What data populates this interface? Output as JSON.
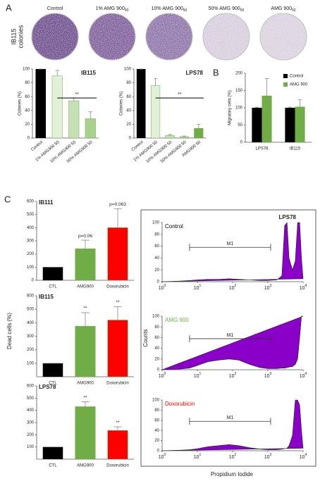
{
  "panels": {
    "a": "A",
    "b": "B",
    "c": "C"
  },
  "colonies_label": [
    "IB115",
    "colonies"
  ],
  "dishes": [
    {
      "label": "Control",
      "color": "#6a4a8a"
    },
    {
      "label": "1% AMG 900",
      "sub": "50",
      "color": "#7a5a98"
    },
    {
      "label": "10% AMG 900",
      "sub": "50",
      "color": "#8a6fa6"
    },
    {
      "label": "50% AMG 900",
      "sub": "50",
      "color": "#d6ccdc"
    },
    {
      "label": "AMG 900",
      "sub": "50",
      "color": "#d9d0de"
    }
  ],
  "dead_ylabel": "Dead cells (%)",
  "flow": {
    "title": "LPS78",
    "xlabel": "Propidium Iodide",
    "ylabel": "Counts"
  },
  "chart_data": [
    {
      "type": "bar",
      "title": "IB115",
      "ylabel": "Colonies (%)",
      "categories": [
        "Control",
        "1% AMG900 50",
        "10% AMG900 50",
        "50% AMG900 50"
      ],
      "values": [
        100,
        90,
        54,
        28
      ],
      "errors": [
        0,
        8,
        4,
        10
      ],
      "colors": [
        "#000000",
        "#e2efd9",
        "#c5e0b4",
        "#a9d18e"
      ],
      "ylim": [
        0,
        100
      ],
      "yticks": [
        0,
        20,
        40,
        60,
        80,
        100
      ],
      "annotation": "**"
    },
    {
      "type": "bar",
      "title": "LPS78",
      "ylabel": "Colonies (%)",
      "categories": [
        "Control",
        "1% AMG900 50",
        "10% AMG900 50",
        "50% AMG900 50",
        "AMG900 50"
      ],
      "values": [
        100,
        76,
        4,
        2,
        14
      ],
      "errors": [
        0,
        10,
        1,
        1,
        6
      ],
      "colors": [
        "#000000",
        "#e2efd9",
        "#c5e0b4",
        "#a9d18e",
        "#70ad47"
      ],
      "ylim": [
        0,
        100
      ],
      "yticks": [
        0,
        20,
        40,
        60,
        80,
        100
      ],
      "annotation": "**"
    },
    {
      "type": "grouped-bar",
      "ylabel": "Migratory cells (%)",
      "categories": [
        "LPS78",
        "IB115"
      ],
      "series": [
        {
          "name": "Control",
          "color": "#000000",
          "values": [
            100,
            100
          ],
          "errors": [
            2,
            2
          ]
        },
        {
          "name": "AMG 900",
          "color": "#70ad47",
          "values": [
            135,
            103
          ],
          "errors": [
            50,
            20
          ]
        }
      ],
      "ylim": [
        0,
        200
      ],
      "yticks": [
        0,
        50,
        100,
        150,
        200
      ],
      "legend": "upper right"
    },
    {
      "type": "bar",
      "title": "IB111",
      "categories": [
        "CTL",
        "AMG900",
        "Doxorubicin"
      ],
      "values": [
        100,
        240,
        400
      ],
      "errors": [
        0,
        65,
        145
      ],
      "annotations": [
        null,
        "p=0.06",
        "p=0.063"
      ],
      "colors": [
        "#000000",
        "#70ad47",
        "#ff0000"
      ],
      "ylim": [
        0,
        600
      ],
      "yticks": [
        0,
        100,
        200,
        300,
        400,
        500,
        600
      ]
    },
    {
      "type": "bar",
      "title": "IB115",
      "categories": [
        "CTL",
        "AMG900",
        "Doxorubicin"
      ],
      "values": [
        100,
        375,
        420
      ],
      "errors": [
        0,
        100,
        100
      ],
      "annotations": [
        null,
        "**",
        "**"
      ],
      "colors": [
        "#000000",
        "#70ad47",
        "#ff0000"
      ],
      "ylim": [
        0,
        600
      ],
      "yticks": [
        100,
        200,
        300,
        400,
        500,
        600
      ]
    },
    {
      "type": "bar",
      "title": "LPS78",
      "categories": [
        "CTL",
        "AMG900",
        "Doxorubicin"
      ],
      "values": [
        100,
        430,
        235
      ],
      "errors": [
        0,
        40,
        30
      ],
      "annotations": [
        null,
        "**",
        "**"
      ],
      "colors": [
        "#000000",
        "#70ad47",
        "#ff0000"
      ],
      "ylim": [
        0,
        600
      ],
      "yticks": [
        100,
        200,
        300,
        400,
        500,
        600
      ]
    },
    {
      "type": "area",
      "label": "Control",
      "label_color": "#000000",
      "color": "#8a00c8",
      "xscale": "log",
      "x": [
        1,
        3,
        6,
        10,
        20,
        40,
        80,
        150,
        300,
        600,
        1000,
        1800,
        2500,
        3000,
        3500,
        4000,
        5000,
        6000,
        7000,
        8000,
        9000,
        10000
      ],
      "values": [
        0,
        1,
        2,
        3,
        4,
        4,
        5,
        4,
        3,
        2,
        2,
        3,
        10,
        95,
        100,
        40,
        20,
        35,
        100,
        100,
        40,
        5
      ],
      "xlim": [
        1,
        10000
      ],
      "xticks": [
        {
          "value": 1,
          "label": "10",
          "sup": "0"
        },
        {
          "value": 10,
          "label": "10",
          "sup": "1"
        },
        {
          "value": 100,
          "label": "10",
          "sup": "2"
        },
        {
          "value": 1000,
          "label": "10",
          "sup": "3"
        },
        {
          "value": 10000,
          "label": "10",
          "sup": "4"
        }
      ],
      "ylim": [
        0,
        100
      ],
      "yticks": [
        0,
        20,
        40,
        60,
        80,
        100
      ],
      "marker": {
        "label": "M1",
        "range": [
          6,
          1200
        ]
      }
    },
    {
      "type": "area",
      "label": "AMG 900",
      "label_color": "#70ad47",
      "color": "#8a00c8",
      "xscale": "log",
      "x": [
        1,
        3,
        6,
        10,
        20,
        40,
        80,
        150,
        300,
        600,
        1000,
        1800,
        2500,
        3000,
        3500,
        4000,
        5000,
        6000,
        7000,
        8000,
        9000,
        10000
      ],
      "values": [
        0,
        1,
        3,
        8,
        15,
        18,
        20,
        18,
        10,
        4,
        2,
        2,
        3,
        3,
        4,
        5,
        6,
        10,
        20,
        60,
        100,
        100
      ],
      "xlim": [
        1,
        10000
      ],
      "xticks": [
        {
          "value": 1,
          "label": "10",
          "sup": "0"
        },
        {
          "value": 10,
          "label": "10",
          "sup": "1"
        },
        {
          "value": 100,
          "label": "10",
          "sup": "2"
        },
        {
          "value": 1000,
          "label": "10",
          "sup": "3"
        },
        {
          "value": 10000,
          "label": "10",
          "sup": "4"
        }
      ],
      "ylim": [
        0,
        100
      ],
      "yticks": [
        0,
        20,
        40,
        60,
        80,
        100
      ],
      "marker": {
        "label": "M1",
        "range": [
          6,
          1200
        ]
      }
    },
    {
      "type": "area",
      "label": "Doxorubicin",
      "label_color": "#ff0000",
      "color": "#8a00c8",
      "xscale": "log",
      "x": [
        1,
        3,
        6,
        10,
        20,
        40,
        80,
        150,
        300,
        600,
        1000,
        1800,
        2500,
        3000,
        3500,
        4000,
        5000,
        6000,
        7000,
        8000,
        9000,
        10000
      ],
      "values": [
        0,
        1,
        2,
        4,
        8,
        10,
        12,
        10,
        6,
        3,
        2,
        2,
        3,
        4,
        5,
        10,
        30,
        100,
        100,
        90,
        40,
        5
      ],
      "xlim": [
        1,
        10000
      ],
      "xticks": [
        {
          "value": 1,
          "label": "10",
          "sup": "0"
        },
        {
          "value": 10,
          "label": "10",
          "sup": "1"
        },
        {
          "value": 100,
          "label": "10",
          "sup": "2"
        },
        {
          "value": 1000,
          "label": "10",
          "sup": "3"
        },
        {
          "value": 10000,
          "label": "10",
          "sup": "4"
        }
      ],
      "ylim": [
        0,
        100
      ],
      "yticks": [
        0,
        20,
        40,
        60,
        80,
        100
      ],
      "marker": {
        "label": "M1",
        "range": [
          6,
          1200
        ]
      }
    }
  ]
}
